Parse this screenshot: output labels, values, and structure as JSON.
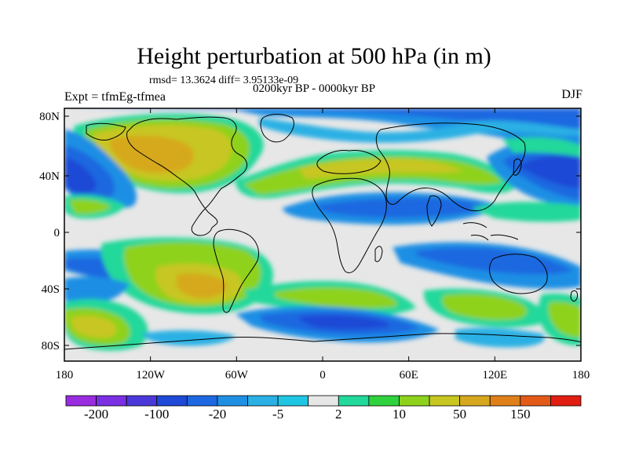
{
  "header": {
    "title": "Height perturbation at 500 hPa (in m)",
    "stats": "rmsd= 13.3624 diff= 3.95133e-09",
    "experiment": "Expt = tfmEg-tfmea",
    "period": "0200kyr BP - 0000kyr BP",
    "season": "DJF"
  },
  "map": {
    "lat_ticks": [
      "80N",
      "40N",
      "0",
      "40S",
      "80S"
    ],
    "lon_ticks": [
      "180",
      "120W",
      "60W",
      "0",
      "60E",
      "120E",
      "180"
    ]
  },
  "colorbar": {
    "labels": [
      "-200",
      "-100",
      "-20",
      "-5",
      "2",
      "10",
      "50",
      "150"
    ],
    "colors": [
      "#9a2ce0",
      "#7a2fe3",
      "#4a38d8",
      "#1d49d6",
      "#1d68e0",
      "#1f8fe4",
      "#2ab0e4",
      "#1fc6e3",
      "#e7e7e7",
      "#22d89a",
      "#2fd13c",
      "#8ed21d",
      "#c8c620",
      "#d6a81f",
      "#df7f1a",
      "#e35a18",
      "#e21d12"
    ]
  }
}
